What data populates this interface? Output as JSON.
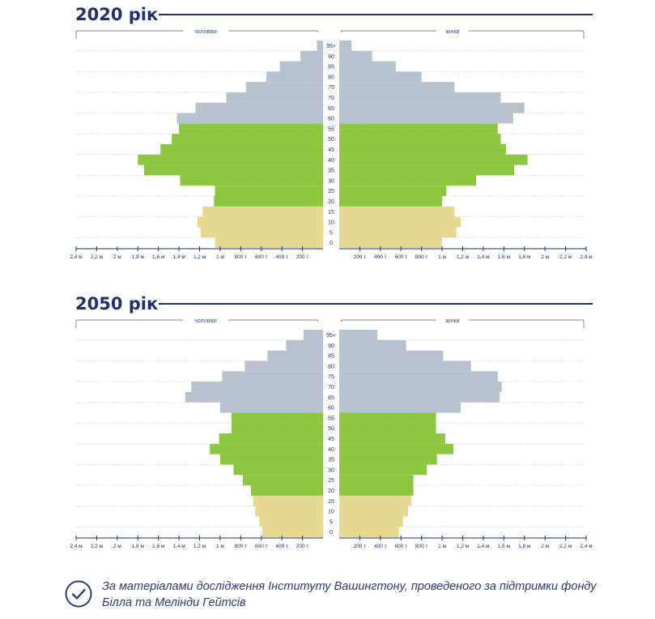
{
  "footnote": {
    "text": "За матеріалами дослідження Інституту Вашингтону, проведеного за підтримки фонду Білла та Мелінди Гейтсів"
  },
  "colors": {
    "title": "#1f2f73",
    "old": "#b7c2cf",
    "working": "#8dc63f",
    "young": "#e6d891",
    "grid": "#c8ccd6"
  },
  "chart_data": [
    {
      "type": "bar",
      "orientation": "horizontal",
      "subtype": "population-pyramid",
      "title": "2020 рік",
      "left_label": "чоловіки",
      "right_label": "жінки",
      "unit": "people",
      "xlim": [
        0,
        2400000
      ],
      "x_ticks_left": [
        "2,4 м",
        "2,2 м",
        "2 м",
        "1,8 м",
        "1,6 м",
        "1,4 м",
        "1,2 м",
        "1 м",
        "800 т",
        "600 т",
        "400 т",
        "200 т"
      ],
      "x_ticks_right": [
        "200 т",
        "400 т",
        "600 т",
        "800 т",
        "1 м",
        "1,2 м",
        "1,4 м",
        "1,6 м",
        "1,8 м",
        "2 м",
        "2,2 м",
        "2,4 м"
      ],
      "categories": [
        "0",
        "5",
        "10",
        "15",
        "20",
        "25",
        "30",
        "35",
        "40",
        "45",
        "50",
        "55",
        "60",
        "65",
        "70",
        "75",
        "80",
        "85",
        "90",
        "95+"
      ],
      "series": [
        {
          "name": "чоловіки",
          "values": [
            1050000,
            1190000,
            1220000,
            1170000,
            1060000,
            1050000,
            1390000,
            1740000,
            1800000,
            1580000,
            1470000,
            1400000,
            1420000,
            1240000,
            940000,
            750000,
            550000,
            420000,
            220000,
            60000
          ]
        },
        {
          "name": "жінки",
          "values": [
            1000000,
            1140000,
            1180000,
            1120000,
            1000000,
            1040000,
            1330000,
            1700000,
            1830000,
            1620000,
            1570000,
            1540000,
            1690000,
            1800000,
            1570000,
            1120000,
            800000,
            550000,
            320000,
            120000
          ]
        }
      ],
      "bands": [
        {
          "from": "0",
          "to": "15",
          "color": "#e6d891"
        },
        {
          "from": "20",
          "to": "55",
          "color": "#8dc63f"
        },
        {
          "from": "60",
          "to": "95+",
          "color": "#b7c2cf"
        }
      ]
    },
    {
      "type": "bar",
      "orientation": "horizontal",
      "subtype": "population-pyramid",
      "title": "2050 рік",
      "left_label": "чоловіки",
      "right_label": "жінки",
      "unit": "people",
      "xlim": [
        0,
        2400000
      ],
      "x_ticks_left": [
        "2,4 м",
        "2,2 м",
        "2 м",
        "1,8 м",
        "1,6 м",
        "1,4 м",
        "1,2 м",
        "1 м",
        "800 т",
        "600 т",
        "400 т",
        "200 т"
      ],
      "x_ticks_right": [
        "200 т",
        "400 т",
        "600 т",
        "800 т",
        "1 м",
        "1,2 м",
        "1,4 м",
        "1,6 м",
        "1,8 м",
        "2 м",
        "2,2 м",
        "2,4 м"
      ],
      "categories": [
        "0",
        "5",
        "10",
        "15",
        "20",
        "25",
        "30",
        "35",
        "40",
        "45",
        "50",
        "55",
        "60",
        "65",
        "70",
        "75",
        "80",
        "85",
        "90",
        "95+"
      ],
      "series": [
        {
          "name": "чоловіки",
          "values": [
            590000,
            620000,
            660000,
            680000,
            700000,
            780000,
            870000,
            1000000,
            1100000,
            1010000,
            890000,
            890000,
            1000000,
            1340000,
            1280000,
            980000,
            760000,
            540000,
            360000,
            190000
          ]
        },
        {
          "name": "жінки",
          "values": [
            580000,
            620000,
            670000,
            700000,
            720000,
            720000,
            850000,
            950000,
            1110000,
            1030000,
            940000,
            940000,
            1180000,
            1560000,
            1580000,
            1540000,
            1280000,
            1010000,
            650000,
            370000
          ]
        }
      ],
      "bands": [
        {
          "from": "0",
          "to": "15",
          "color": "#e6d891"
        },
        {
          "from": "20",
          "to": "55",
          "color": "#8dc63f"
        },
        {
          "from": "60",
          "to": "95+",
          "color": "#b7c2cf"
        }
      ]
    }
  ]
}
